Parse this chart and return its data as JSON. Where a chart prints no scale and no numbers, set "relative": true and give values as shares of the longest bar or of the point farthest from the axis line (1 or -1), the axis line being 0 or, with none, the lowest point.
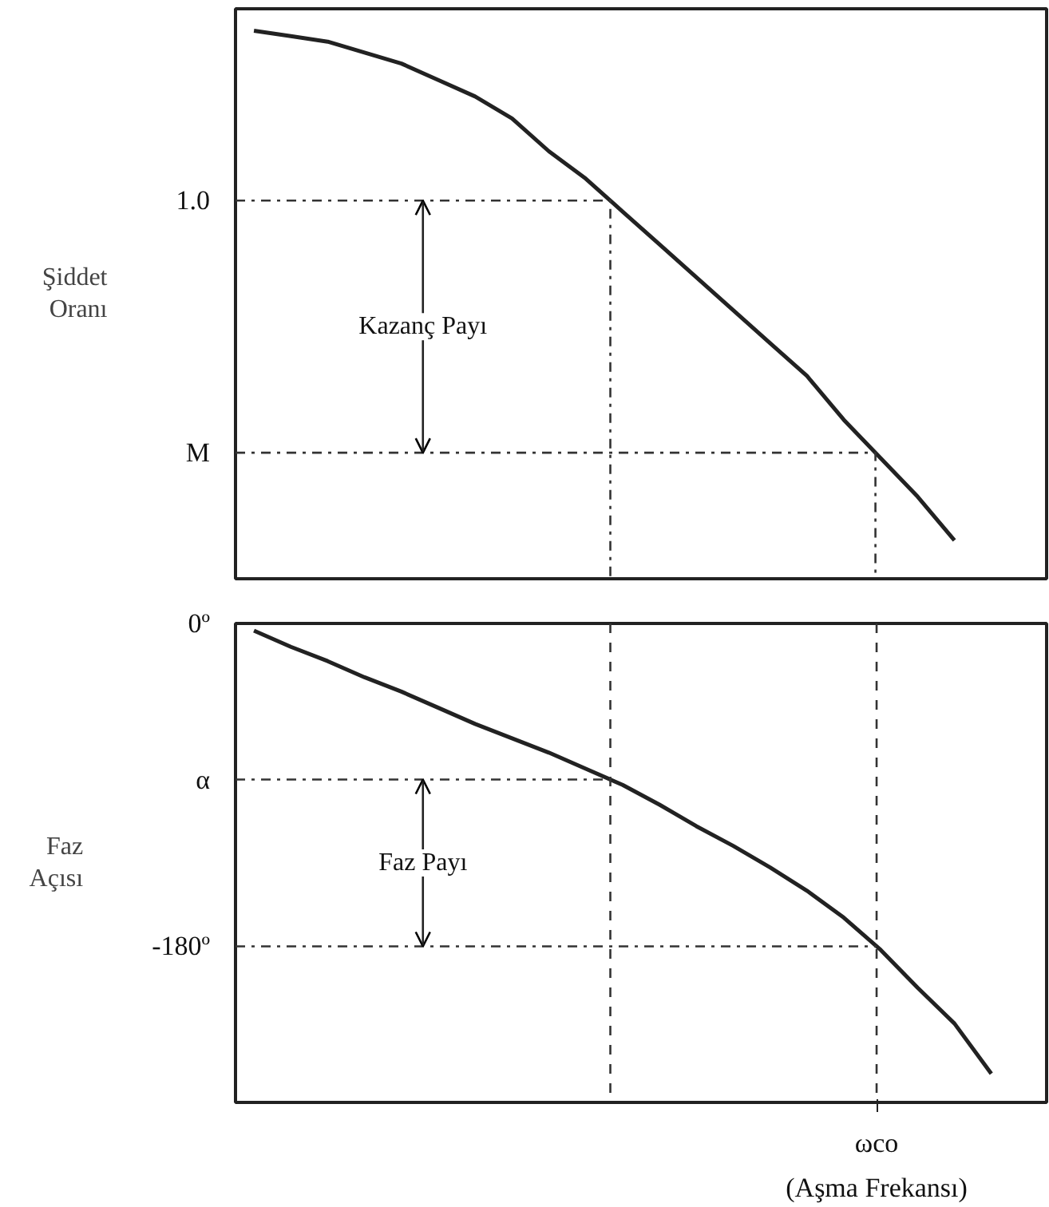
{
  "chart_data": [
    {
      "type": "line",
      "ylabel": "Şiddet Oranı",
      "relative": true,
      "categories": [
        null,
        null,
        null,
        null,
        null,
        null,
        null,
        null,
        null,
        null,
        null,
        null,
        null,
        null,
        null,
        null,
        null,
        null,
        null,
        null,
        null,
        null
      ],
      "series": [
        {
          "color": "#222222",
          "values": [
            1,
            0.99,
            0.98,
            0.96,
            0.94,
            0.91,
            0.88,
            0.84,
            0.78,
            0.73,
            0.67,
            0.61,
            0.55,
            0.49,
            0.43,
            0.37,
            0.29,
            0.22,
            0.15,
            0.07,
            null,
            null
          ]
        }
      ],
      "ref_lines": [
        {
          "axis": "y",
          "value": 0.69,
          "line_style": "dashdot"
        },
        {
          "axis": "y",
          "value": 0.23,
          "line_style": "dashdot"
        }
      ],
      "annotations": [
        "1.0",
        "M",
        "Kazanç Payı"
      ]
    },
    {
      "type": "line",
      "ylabel": "Faz Açısı",
      "ylim": [
        -267,
        0
      ],
      "categories": [
        null,
        null,
        null,
        null,
        null,
        null,
        null,
        null,
        null,
        null,
        null,
        null,
        null,
        null,
        null,
        null,
        null,
        null,
        null,
        null,
        null,
        null
      ],
      "yticks": [
        {
          "value": 0,
          "label": "0º"
        },
        {
          "value": -87,
          "label": "α"
        },
        {
          "value": -180,
          "label": "-180º"
        }
      ],
      "series": [
        {
          "color": "#222222",
          "values": [
            -4,
            -13,
            -21,
            -30,
            -38,
            -47,
            -56,
            -64,
            -72,
            -81,
            -90,
            -101,
            -113,
            -124,
            -136,
            -149,
            -164,
            -182,
            -203,
            -223,
            -251,
            null
          ]
        }
      ],
      "ref_lines": [
        {
          "axis": "y",
          "value": -87,
          "line_style": "dashdot"
        },
        {
          "axis": "y",
          "value": -180,
          "line_style": "dashdot"
        }
      ],
      "annotations": [
        "Faz Payı",
        "ωco",
        "(Aşma Frekansı)"
      ]
    }
  ]
}
